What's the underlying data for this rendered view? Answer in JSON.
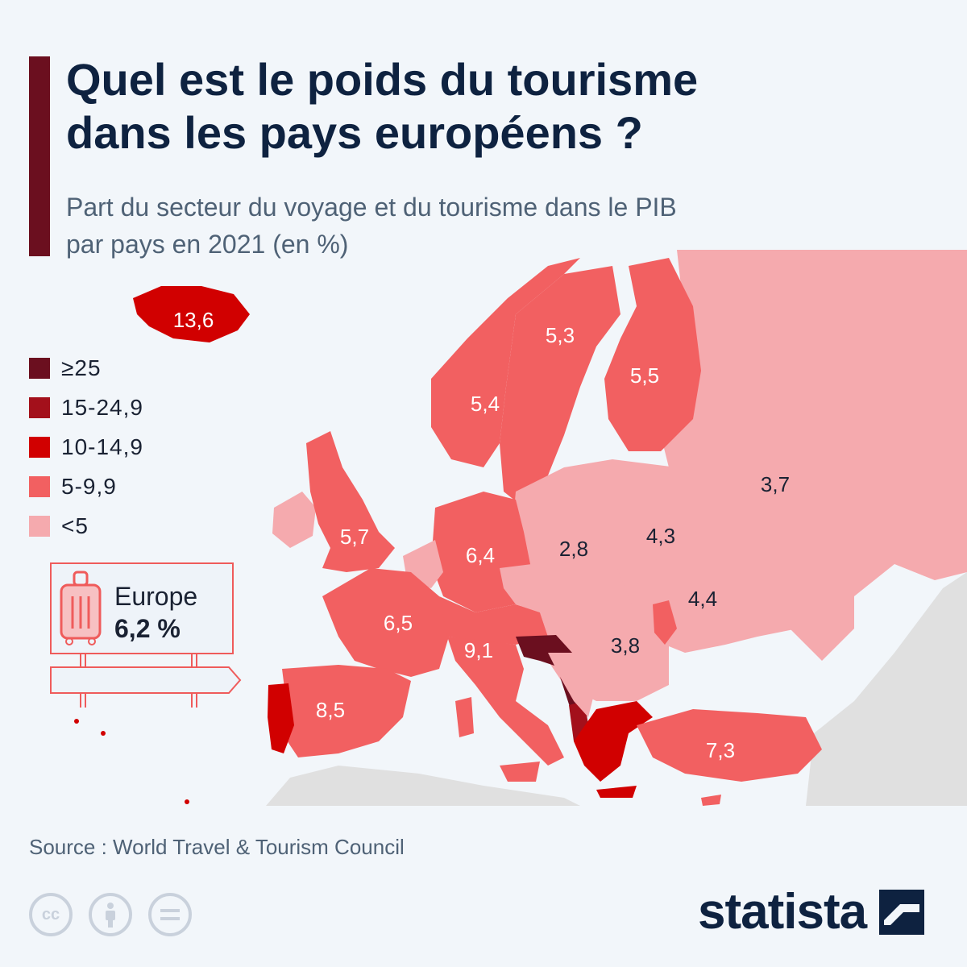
{
  "title": {
    "line1": "Quel est le poids du tourisme",
    "line2": "dans les pays européens ?"
  },
  "subtitle": {
    "line1": "Part du secteur du voyage et du tourisme dans le PIB",
    "line2": "par pays en 2021 (en %)"
  },
  "legend": [
    {
      "label": "≥25",
      "color": "#6b0f1f"
    },
    {
      "label": "15-24,9",
      "color": "#a3101b"
    },
    {
      "label": "10-14,9",
      "color": "#d10000"
    },
    {
      "label": "5-9,9",
      "color": "#f26061"
    },
    {
      "label": "<5",
      "color": "#f5aaae"
    }
  ],
  "summary": {
    "label": "Europe",
    "value": "6,2 %",
    "icon": "suitcase-icon"
  },
  "map_labels": {
    "iceland": "13,6",
    "sweden": "5,3",
    "norway": "5,4",
    "finland": "5,5",
    "russia": "3,7",
    "uk": "5,7",
    "germany": "6,4",
    "poland": "2,8",
    "belarus": "4,3",
    "ukraine": "4,4",
    "france": "6,5",
    "italy": "9,1",
    "romania": "3,8",
    "spain": "8,5",
    "turkey": "7,3"
  },
  "source": "Source : World Travel & Tourism Council",
  "license_icons": [
    "creative-commons-icon",
    "attribution-icon",
    "no-derivatives-icon"
  ],
  "logo": {
    "text": "statista"
  },
  "colors": {
    "title": "#0e2240",
    "subtitle": "#4f6276",
    "accent": "#6b0f1f",
    "non_europe": "#e0e0e0",
    "background": "#f2f6fa"
  }
}
